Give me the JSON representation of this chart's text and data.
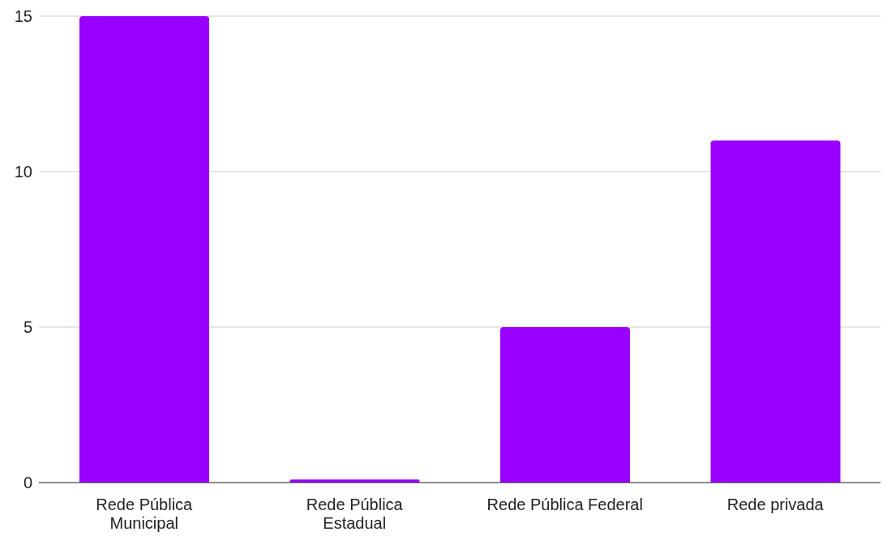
{
  "chart_data": {
    "type": "bar",
    "categories": [
      "Rede Pública Municipal",
      "Rede Pública Estadual",
      "Rede Pública Federal",
      "Rede privada"
    ],
    "values": [
      15,
      0.1,
      5,
      11
    ],
    "color": "#9900ff",
    "ylim": [
      0,
      15
    ],
    "yticks": [
      0,
      5,
      10,
      15
    ],
    "grid": "y"
  }
}
